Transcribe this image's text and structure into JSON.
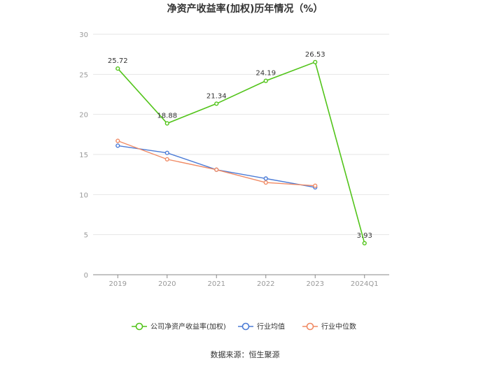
{
  "chart_data": {
    "type": "line",
    "title": "净资产收益率(加权)历年情况（%）",
    "categories": [
      "2019",
      "2020",
      "2021",
      "2022",
      "2023",
      "2024Q1"
    ],
    "ylim": [
      0,
      30
    ],
    "yticks": [
      "0",
      "5",
      "10",
      "15",
      "20",
      "25",
      "30"
    ],
    "grid": true,
    "legend_position": "bottom",
    "series": [
      {
        "name": "公司净资产收益率(加权)",
        "color": "#52c41a",
        "values": [
          25.72,
          18.88,
          21.34,
          24.19,
          26.53,
          3.93
        ],
        "labels": [
          "25.72",
          "18.88",
          "21.34",
          "24.19",
          "26.53",
          "3.93"
        ]
      },
      {
        "name": "行业均值",
        "color": "#4b7bd6",
        "values": [
          16.1,
          15.2,
          13.1,
          12.0,
          10.9,
          null
        ]
      },
      {
        "name": "行业中位数",
        "color": "#f08a64",
        "values": [
          16.7,
          14.4,
          13.1,
          11.5,
          11.1,
          null
        ]
      }
    ]
  },
  "source": "数据来源：恒生聚源"
}
